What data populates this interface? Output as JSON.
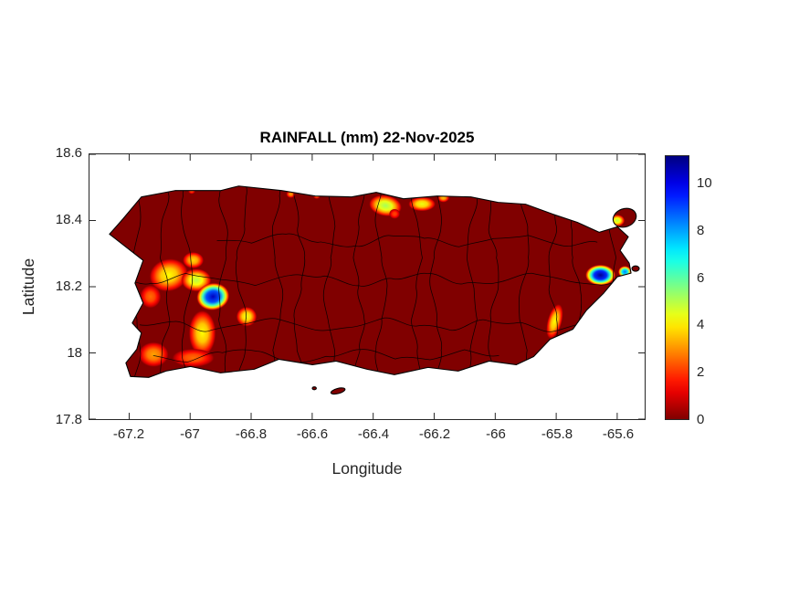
{
  "figure": {
    "title": "RAINFALL (mm) 22-Nov-2025",
    "xlabel": "Longitude",
    "ylabel": "Latitude"
  },
  "axes": {
    "x_range": [
      -67.33,
      -65.51
    ],
    "y_range": [
      17.8,
      18.6
    ],
    "x_ticks": [
      {
        "v": -67.2,
        "label": "-67.2"
      },
      {
        "v": -67.0,
        "label": "-67"
      },
      {
        "v": -66.8,
        "label": "-66.8"
      },
      {
        "v": -66.6,
        "label": "-66.6"
      },
      {
        "v": -66.4,
        "label": "-66.4"
      },
      {
        "v": -66.2,
        "label": "-66.2"
      },
      {
        "v": -66.0,
        "label": "-66"
      },
      {
        "v": -65.8,
        "label": "-65.8"
      },
      {
        "v": -65.6,
        "label": "-65.6"
      }
    ],
    "y_ticks": [
      {
        "v": 17.8,
        "label": "17.8"
      },
      {
        "v": 18.0,
        "label": "18"
      },
      {
        "v": 18.2,
        "label": "18.2"
      },
      {
        "v": 18.4,
        "label": "18.4"
      },
      {
        "v": 18.6,
        "label": "18.6"
      }
    ]
  },
  "colorbar": {
    "vmax": 11.2,
    "ticks": [
      0,
      2,
      4,
      6,
      8,
      10
    ],
    "tick_labels": [
      "0",
      "2",
      "4",
      "6",
      "8",
      "10"
    ],
    "colormap": "jet-reversed (0 = dark red, high = dark blue)"
  },
  "chart_data": {
    "type": "heatmap",
    "title": "RAINFALL (mm) 22-Nov-2025",
    "date": "22-Nov-2025",
    "units": "mm",
    "region": "Puerto Rico with municipal boundaries",
    "xlabel": "Longitude",
    "ylabel": "Latitude",
    "x_range": [
      -67.33,
      -65.51
    ],
    "y_range": [
      17.8,
      18.6
    ],
    "background_value_mm": 0,
    "max_value_mm": 11,
    "hotspots": [
      {
        "lon": -67.07,
        "lat": 18.235,
        "rx": 0.065,
        "ry": 0.05,
        "rot": -15,
        "peak": 4.2
      },
      {
        "lon": -67.13,
        "lat": 18.17,
        "rx": 0.035,
        "ry": 0.035,
        "rot": 0,
        "peak": 2.6
      },
      {
        "lon": -66.98,
        "lat": 18.22,
        "rx": 0.05,
        "ry": 0.035,
        "rot": 0,
        "peak": 5.0
      },
      {
        "lon": -66.99,
        "lat": 18.28,
        "rx": 0.035,
        "ry": 0.025,
        "rot": 0,
        "peak": 3.8
      },
      {
        "lon": -66.925,
        "lat": 18.17,
        "rx": 0.055,
        "ry": 0.042,
        "rot": -10,
        "peak": 10.5
      },
      {
        "lon": -66.96,
        "lat": 18.06,
        "rx": 0.045,
        "ry": 0.07,
        "rot": 0,
        "peak": 4.2
      },
      {
        "lon": -66.99,
        "lat": 17.985,
        "rx": 0.07,
        "ry": 0.028,
        "rot": 0,
        "peak": 2.6
      },
      {
        "lon": -67.12,
        "lat": 17.995,
        "rx": 0.05,
        "ry": 0.038,
        "rot": 0,
        "peak": 3.2
      },
      {
        "lon": -66.815,
        "lat": 18.11,
        "rx": 0.034,
        "ry": 0.03,
        "rot": 0,
        "peak": 4.4
      },
      {
        "lon": -66.995,
        "lat": 18.49,
        "rx": 0.012,
        "ry": 0.01,
        "rot": 0,
        "peak": 2.4
      },
      {
        "lon": -66.67,
        "lat": 18.48,
        "rx": 0.015,
        "ry": 0.012,
        "rot": 0,
        "peak": 3.2
      },
      {
        "lon": -66.585,
        "lat": 18.475,
        "rx": 0.012,
        "ry": 0.01,
        "rot": 0,
        "peak": 3.0
      },
      {
        "lon": -66.36,
        "lat": 18.445,
        "rx": 0.055,
        "ry": 0.032,
        "rot": 10,
        "peak": 5.2
      },
      {
        "lon": -66.33,
        "lat": 18.42,
        "rx": 0.018,
        "ry": 0.015,
        "rot": 0,
        "peak": 2.2
      },
      {
        "lon": -66.24,
        "lat": 18.45,
        "rx": 0.045,
        "ry": 0.022,
        "rot": 0,
        "peak": 4.4
      },
      {
        "lon": -66.17,
        "lat": 18.47,
        "rx": 0.02,
        "ry": 0.015,
        "rot": 0,
        "peak": 3.6
      },
      {
        "lon": -65.655,
        "lat": 18.235,
        "rx": 0.05,
        "ry": 0.032,
        "rot": 0,
        "peak": 11.0
      },
      {
        "lon": -65.575,
        "lat": 18.245,
        "rx": 0.022,
        "ry": 0.018,
        "rot": 0,
        "peak": 8.5
      },
      {
        "lon": -65.805,
        "lat": 18.095,
        "rx": 0.024,
        "ry": 0.055,
        "rot": 15,
        "peak": 4.2
      },
      {
        "lon": -65.6,
        "lat": 18.4,
        "rx": 0.025,
        "ry": 0.018,
        "rot": 0,
        "peak": 5.0
      }
    ]
  }
}
